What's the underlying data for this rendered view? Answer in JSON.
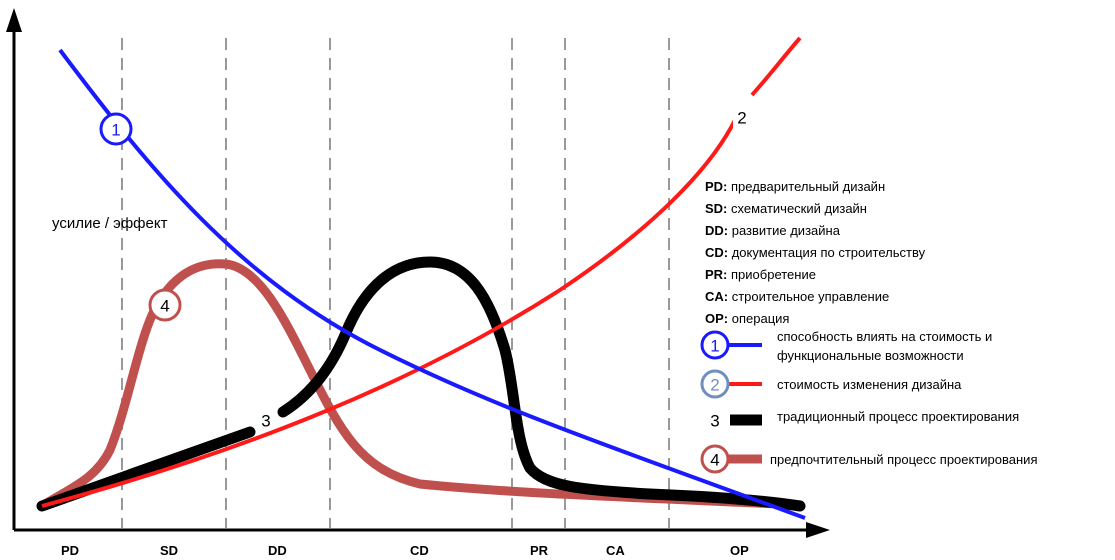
{
  "diagram": {
    "y_axis_label": "усилие / эффект",
    "phases": [
      "PD",
      "SD",
      "DD",
      "CD",
      "PR",
      "CA",
      "OP"
    ],
    "abbreviations": [
      {
        "key": "PD:",
        "text": " предварительный дизайн"
      },
      {
        "key": "SD:",
        "text": " схематический дизайн"
      },
      {
        "key": "DD:",
        "text": " развитие дизайна"
      },
      {
        "key": "CD:",
        "text": " документация по строительству"
      },
      {
        "key": "PR:",
        "text": " приобретение"
      },
      {
        "key": "CA:",
        "text": " строительное управление"
      },
      {
        "key": "OP:",
        "text": " операция"
      }
    ],
    "curves": [
      {
        "number": "1",
        "color": "#1a1aff",
        "legend_lines": [
          "способность влиять на стоимость и",
          "функциональные возможности"
        ]
      },
      {
        "number": "2",
        "color": "#ff1a1a",
        "legend_lines": [
          "стоимость изменения дизайна"
        ]
      },
      {
        "number": "3",
        "color": "#000000",
        "legend_lines": [
          "традиционный процесс проектирования"
        ]
      },
      {
        "number": "4",
        "color": "#c0504d",
        "legend_lines": [
          "предпочтительный процесс проектирования"
        ]
      }
    ]
  }
}
